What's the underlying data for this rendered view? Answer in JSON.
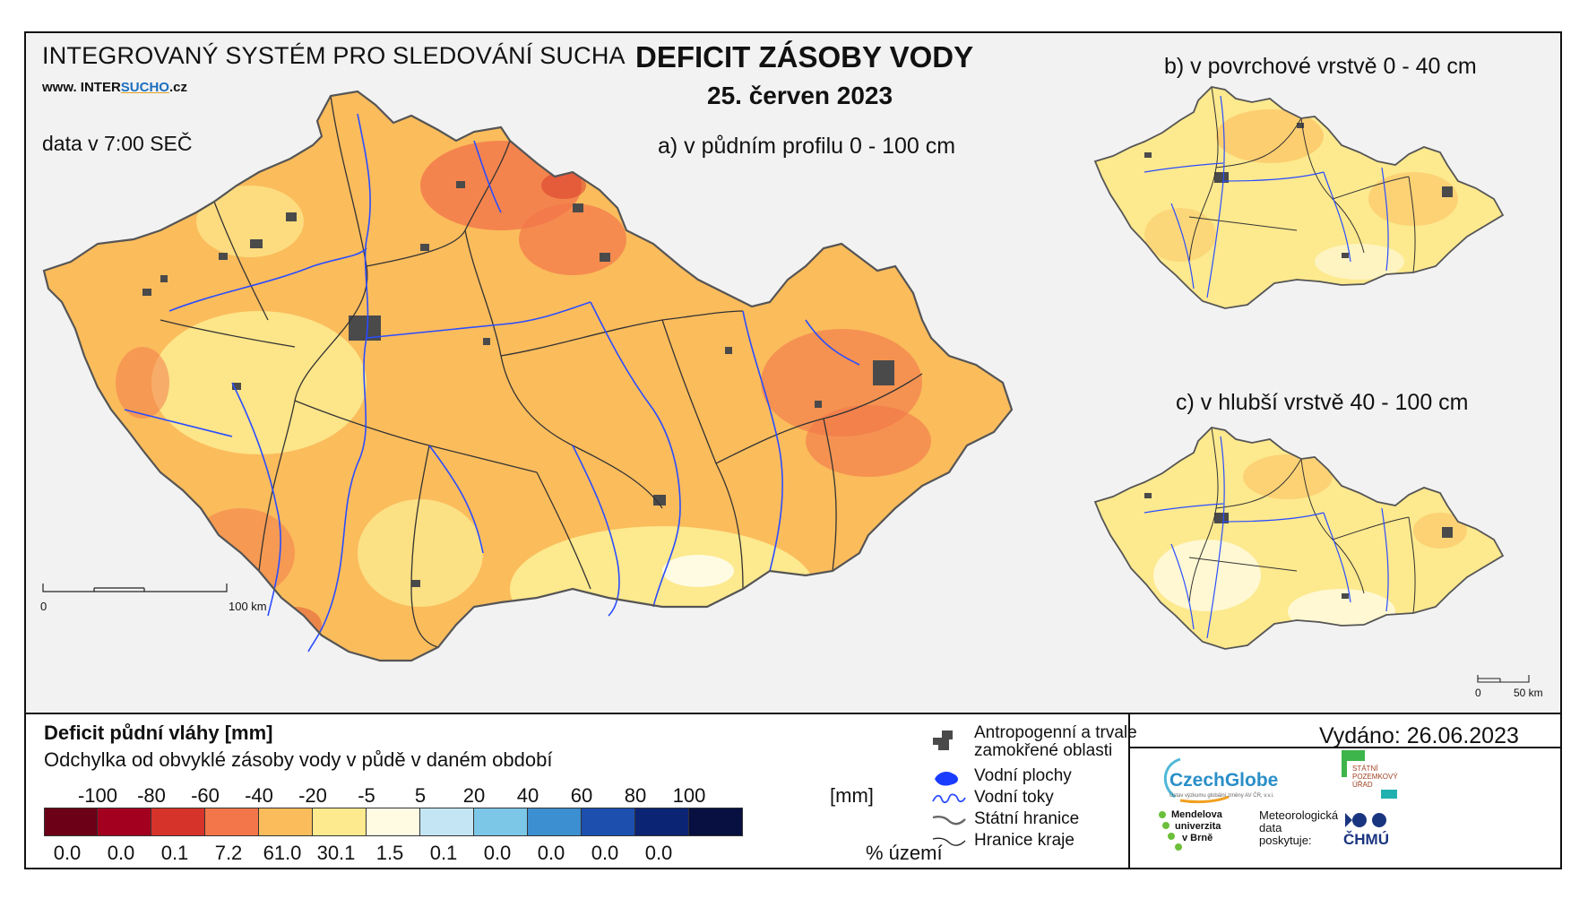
{
  "header": {
    "system_title": "INTEGROVANÝ SYSTÉM PRO SLEDOVÁNÍ SUCHA",
    "website_prefix": "www. INTER",
    "website_accent": "SUCHO",
    "website_suffix": ".cz",
    "data_time": "data v 7:00 SEČ"
  },
  "title": {
    "main": "DEFICIT ZÁSOBY VODY",
    "date": "25. červen 2023"
  },
  "maps": {
    "a_label": "a) v půdním profilu 0 - 100 cm",
    "b_label": "b) v povrchové vrstvě 0 - 40 cm",
    "c_label": "c) v hlubší vrstvě 40 - 100 cm",
    "scale_main": {
      "zero": "0",
      "end": "100 km"
    },
    "scale_small": {
      "zero": "0",
      "end": "50 km"
    }
  },
  "legend": {
    "title": "Deficit půdní vláhy  [mm]",
    "subtitle": "Odchylka od obvyklé zásoby vody v půdě v daném období",
    "unit": "[mm]",
    "pct_unit": "% území",
    "thresholds": [
      "-100",
      "-80",
      "-60",
      "-40",
      "-20",
      "-5",
      "5",
      "20",
      "40",
      "60",
      "80",
      "100"
    ],
    "bins": [
      {
        "color": "#6b0016",
        "pct": "0.0"
      },
      {
        "color": "#a3001f",
        "pct": "0.0"
      },
      {
        "color": "#d6332a",
        "pct": "0.1"
      },
      {
        "color": "#f2764a",
        "pct": "7.2"
      },
      {
        "color": "#fbbc5c",
        "pct": "61.0"
      },
      {
        "color": "#fde98e",
        "pct": "30.1"
      },
      {
        "color": "#fffbe3",
        "pct": "1.5"
      },
      {
        "color": "#c4e6f4",
        "pct": "0.1"
      },
      {
        "color": "#7cc7e8",
        "pct": "0.0"
      },
      {
        "color": "#3c8fd0",
        "pct": "0.0"
      },
      {
        "color": "#1c4fae",
        "pct": "0.0"
      },
      {
        "color": "#0b2474",
        "pct": "0.0"
      },
      {
        "color": "#071040",
        "pct": ""
      }
    ]
  },
  "symbols": {
    "anthropogenic_1": "Antropogenní a trvale",
    "anthropogenic_2": "zamokřené oblasti",
    "water_bodies": "Vodní plochy",
    "rivers": "Vodní toky",
    "state_border": "Státní hranice",
    "region_border": "Hranice kraje"
  },
  "issued": "Vydáno: 26.06.2023",
  "logos": {
    "czechglobe": "CzechGlobe",
    "czechglobe_sub": "Ústav výzkumu globální změny AV ČR, v.v.i.",
    "spu_1": "STÁTNÍ",
    "spu_2": "POZEMKOVÝ",
    "spu_3": "ÚŘAD",
    "mendel_1": "Mendelova",
    "mendel_2": "univerzita",
    "mendel_3": "v Brně",
    "meteo_1": "Meteorologická",
    "meteo_2": "data",
    "meteo_3": "poskytuje:",
    "chmu": "ČHMÚ"
  }
}
